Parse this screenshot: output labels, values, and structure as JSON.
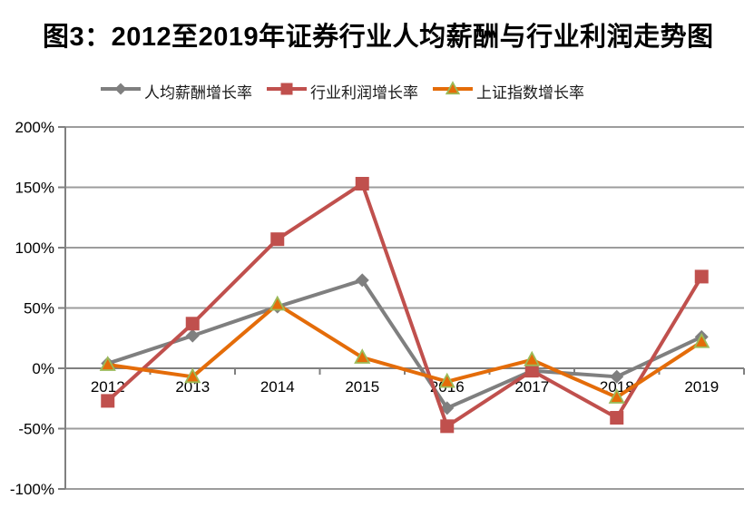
{
  "title": "图3：2012至2019年证券行业人均薪酬与行业利润走势图",
  "legend": [
    {
      "label": "人均薪酬增长率",
      "marker": "diamond",
      "color": "#7F7F7F"
    },
    {
      "label": "行业利润增长率",
      "marker": "square",
      "color": "#C0504D"
    },
    {
      "label": "上证指数增长率",
      "marker": "triangle",
      "color": "#E46C09",
      "marker_stroke": "#9BBB59"
    }
  ],
  "colors": {
    "salary_series": "#7F7F7F",
    "profit_series": "#C0504D",
    "index_series": "#E46C09",
    "triangle_border": "#9BBB59",
    "grid": "#9C9C9C",
    "axis": "#808080",
    "text": "#000000",
    "background": "#FFFFFF"
  },
  "chart_data": {
    "type": "line",
    "title": "图3：2012至2019年证券行业人均薪酬与行业利润走势图",
    "categories": [
      "2012",
      "2013",
      "2014",
      "2015",
      "2016",
      "2017",
      "2018",
      "2019"
    ],
    "series": [
      {
        "name": "人均薪酬增长率",
        "marker": "diamond",
        "color": "#7F7F7F",
        "values": [
          4,
          27,
          51,
          73,
          -33,
          -2,
          -7,
          26
        ]
      },
      {
        "name": "行业利润增长率",
        "marker": "square",
        "color": "#C0504D",
        "values": [
          -27,
          37,
          107,
          153,
          -48,
          -2,
          -41,
          76
        ]
      },
      {
        "name": "上证指数增长率",
        "marker": "triangle",
        "color": "#E46C09",
        "marker_stroke": "#9BBB59",
        "values": [
          3,
          -7,
          53,
          9,
          -11,
          7,
          -24,
          22
        ]
      }
    ],
    "xlabel": "",
    "ylabel": "",
    "ylim": [
      -100,
      200
    ],
    "ytick_step": 50,
    "ytick_labels": [
      "200%",
      "150%",
      "100%",
      "50%",
      "0%",
      "-50%",
      "-100%"
    ],
    "unit": "%",
    "grid": true,
    "legend_position": "top"
  }
}
